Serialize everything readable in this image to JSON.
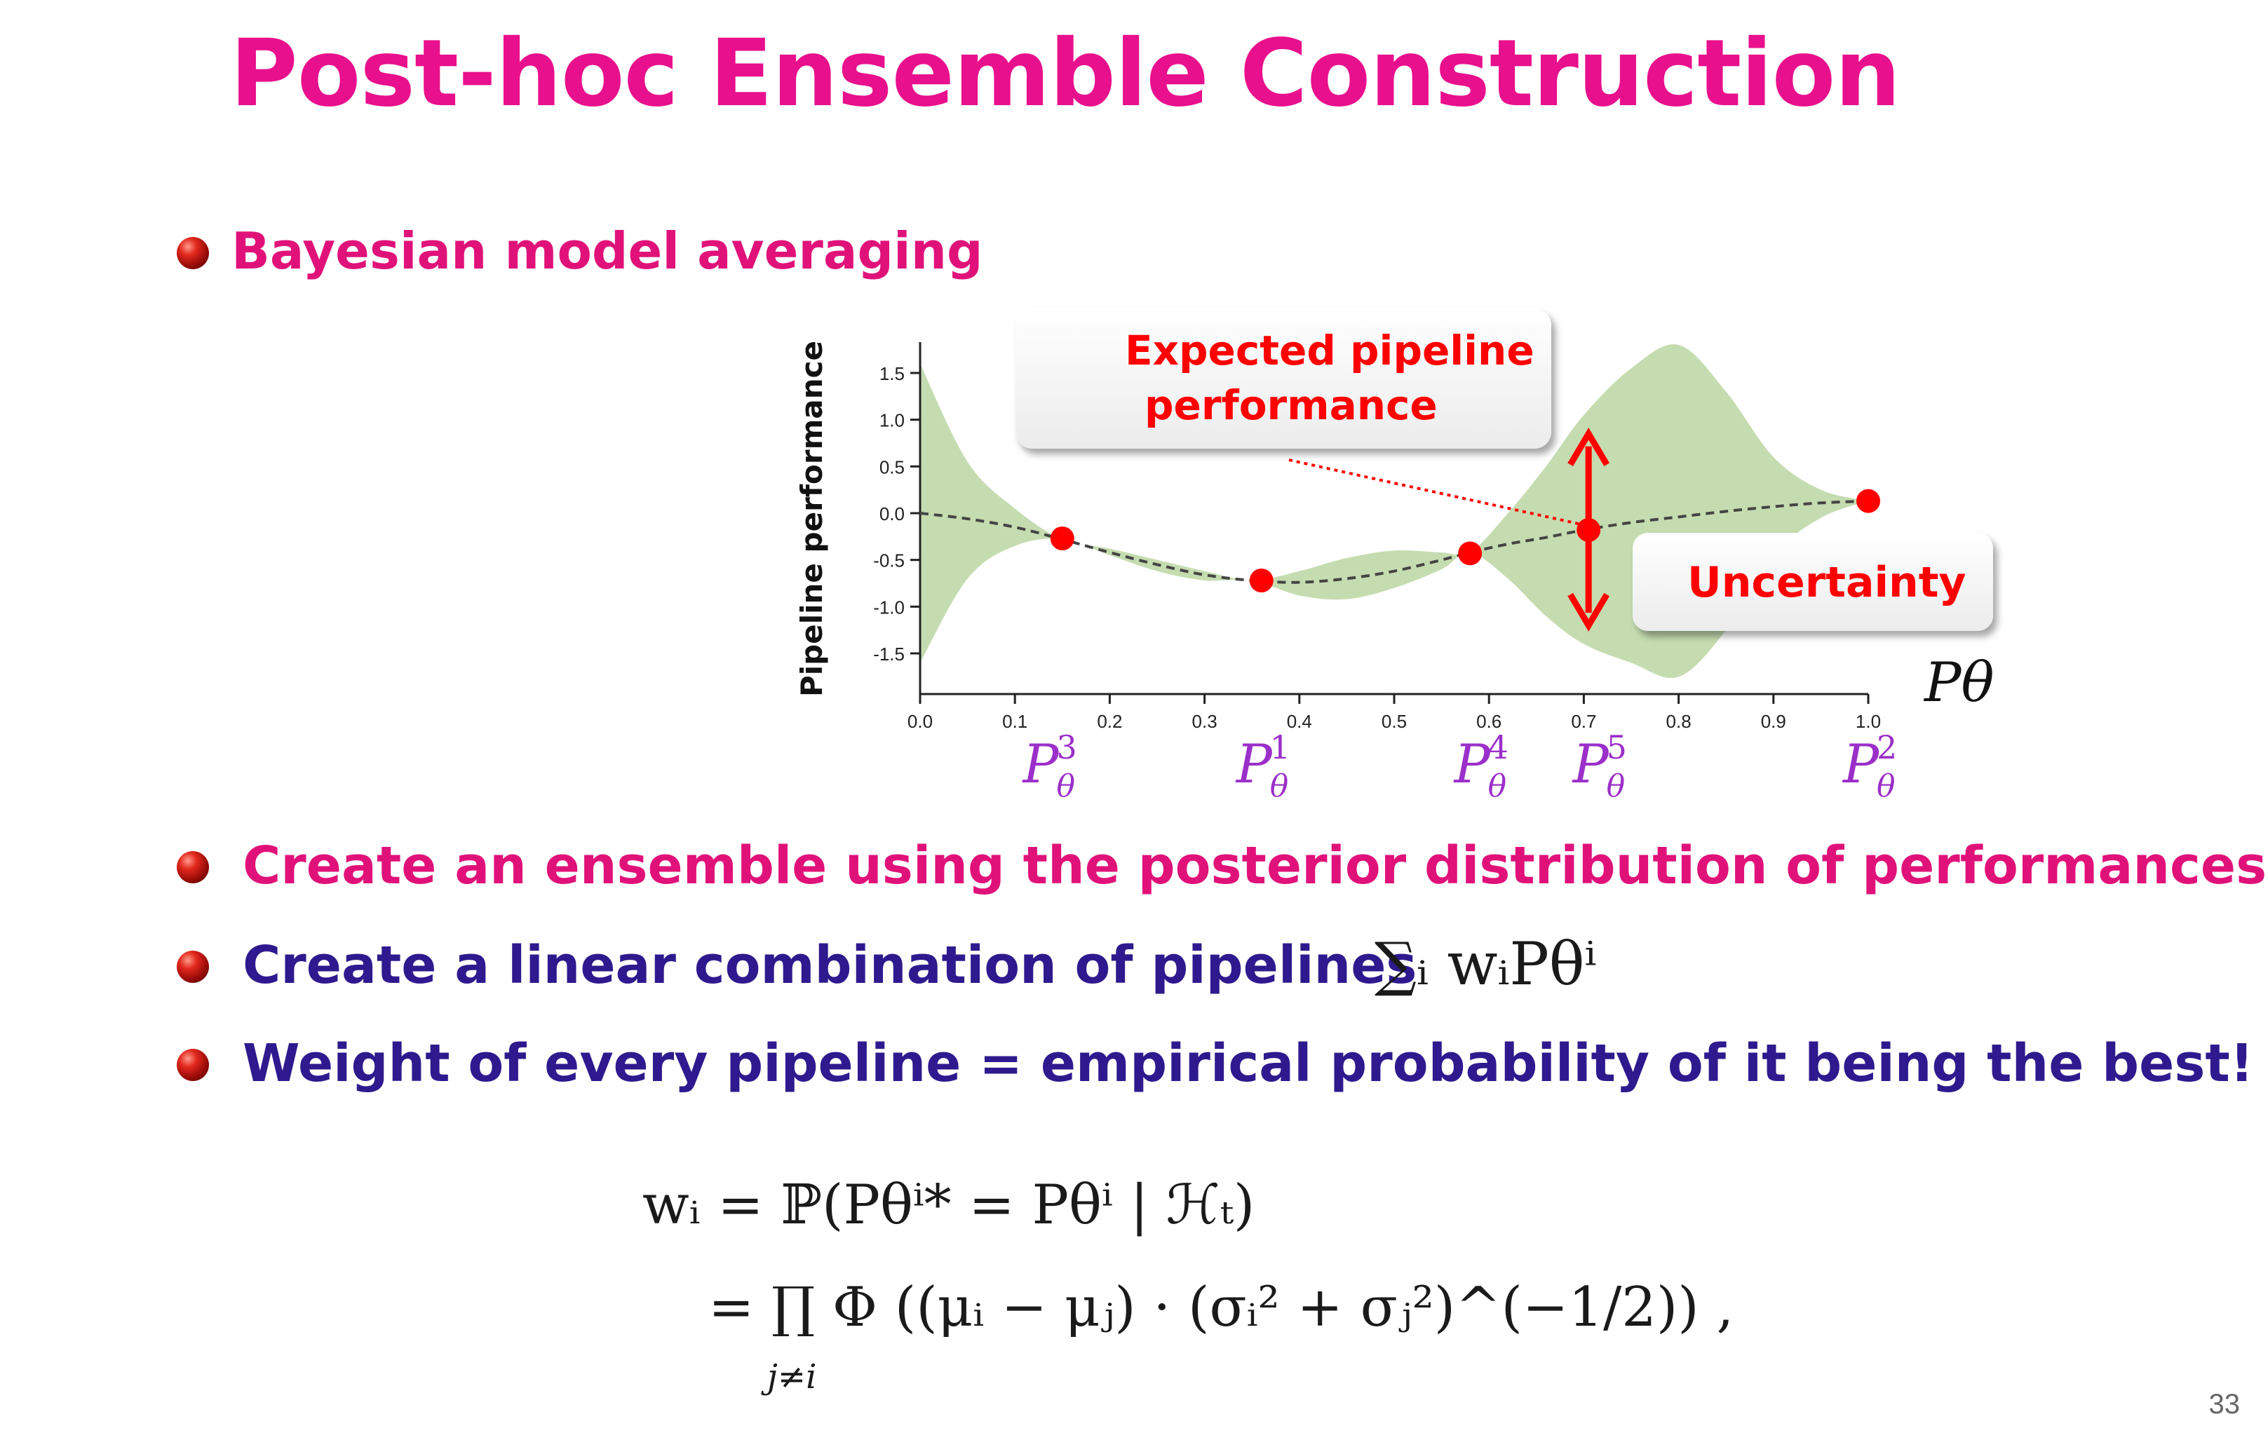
{
  "slide": {
    "title": "Post-hoc Ensemble Construction",
    "page_number": "33"
  },
  "bullets": {
    "b1": "Bayesian model averaging",
    "b2": "Create an ensemble using the posterior distribution of performances",
    "b3": "Create a linear combination of pipelines",
    "b4": "Weight of every pipeline = empirical probability of it being the best!"
  },
  "formulas": {
    "sum": "∑ᵢ wᵢPθⁱ",
    "weight_line1": "wᵢ = ℙ(Pθⁱ* = Pθⁱ | ℋₜ)",
    "weight_line2": "= ∏ Φ ((μᵢ − μⱼ) · (σᵢ² + σⱼ²)^(−1/2)) ,",
    "weight_sub": "j≠i"
  },
  "callouts": {
    "expected_line1": "Expected pipeline",
    "expected_line2": "performance",
    "uncertainty": "Uncertainty"
  },
  "colors": {
    "title": "#e8108c",
    "pink_text": "#e0127a",
    "navy_text": "#2e1a8e",
    "marker": "#ff0000",
    "band": "#c5dcb0",
    "pipeline_label": "#9b2fc9"
  },
  "chart_data": {
    "type": "line",
    "title": "",
    "xlabel": "Pθ",
    "ylabel": "Pipeline performance",
    "xlim": [
      0.0,
      1.0
    ],
    "ylim": [
      -1.75,
      1.85
    ],
    "x_ticks": [
      "0.0",
      "0.1",
      "0.2",
      "0.3",
      "0.4",
      "0.5",
      "0.6",
      "0.7",
      "0.8",
      "0.9",
      "1.0"
    ],
    "y_ticks": [
      "1.5",
      "1.0",
      "0.5",
      "0.0",
      "-0.5",
      "-1.0",
      "-1.5"
    ],
    "mean_curve": {
      "x": [
        0.0,
        0.05,
        0.1,
        0.15,
        0.2,
        0.25,
        0.3,
        0.35,
        0.4,
        0.45,
        0.5,
        0.55,
        0.58,
        0.62,
        0.66,
        0.7,
        0.75,
        0.8,
        0.85,
        0.9,
        0.95,
        1.0
      ],
      "y": [
        0.0,
        -0.06,
        -0.15,
        -0.28,
        -0.42,
        -0.55,
        -0.66,
        -0.72,
        -0.74,
        -0.7,
        -0.62,
        -0.5,
        -0.42,
        -0.33,
        -0.26,
        -0.18,
        -0.1,
        -0.04,
        0.02,
        0.07,
        0.11,
        0.13
      ]
    },
    "uncertainty_band": {
      "x": [
        0.0,
        0.05,
        0.1,
        0.15,
        0.2,
        0.25,
        0.3,
        0.35,
        0.4,
        0.45,
        0.5,
        0.55,
        0.58,
        0.62,
        0.66,
        0.7,
        0.75,
        0.8,
        0.85,
        0.9,
        0.95,
        1.0
      ],
      "upper": [
        1.6,
        0.55,
        0.05,
        -0.28,
        -0.38,
        -0.5,
        -0.62,
        -0.72,
        -0.62,
        -0.48,
        -0.4,
        -0.42,
        -0.42,
        0.0,
        0.5,
        1.05,
        1.55,
        1.8,
        1.3,
        0.6,
        0.25,
        0.13
      ],
      "lower": [
        -1.6,
        -0.7,
        -0.35,
        -0.28,
        -0.45,
        -0.62,
        -0.72,
        -0.72,
        -0.88,
        -0.92,
        -0.8,
        -0.6,
        -0.42,
        -0.7,
        -1.1,
        -1.4,
        -1.6,
        -1.75,
        -1.25,
        -0.45,
        -0.05,
        0.13
      ]
    },
    "points": [
      {
        "label": "P3",
        "x": 0.15,
        "y": -0.27
      },
      {
        "label": "P1",
        "x": 0.36,
        "y": -0.72
      },
      {
        "label": "P4",
        "x": 0.58,
        "y": -0.43
      },
      {
        "label": "P5",
        "x": 0.705,
        "y": -0.18
      },
      {
        "label": "P2",
        "x": 1.0,
        "y": 0.13
      }
    ],
    "pipeline_labels": [
      {
        "base": "P",
        "sup": "3",
        "sub": "θ",
        "x": 0.135
      },
      {
        "base": "P",
        "sup": "1",
        "sub": "θ",
        "x": 0.36
      },
      {
        "base": "P",
        "sup": "4",
        "sub": "θ",
        "x": 0.59
      },
      {
        "base": "P",
        "sup": "5",
        "sub": "θ",
        "x": 0.715
      },
      {
        "base": "P",
        "sup": "2",
        "sub": "θ",
        "x": 1.0
      }
    ],
    "uncertainty_arrow": {
      "x": 0.705,
      "y_top": 0.85,
      "y_bottom": -1.2
    },
    "grid": false,
    "legend": "none"
  }
}
